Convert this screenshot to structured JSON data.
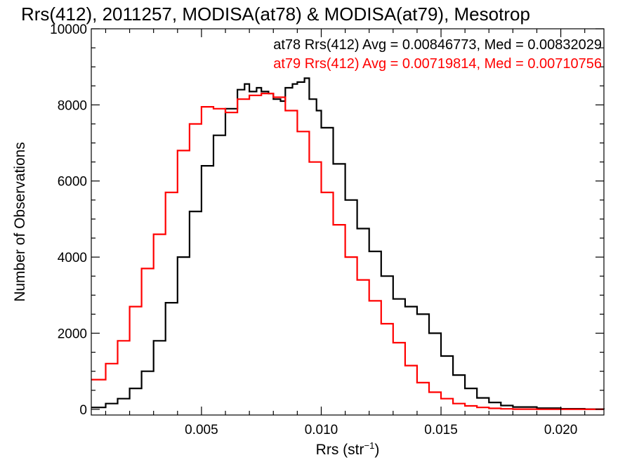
{
  "chart_data": {
    "type": "line",
    "title": "Rrs(412), 2011257, MODISA(at78) & MODISA(at79), Mesotrop",
    "xlabel": "Rrs (str",
    "xlabel_sup": "−1",
    "xlabel_close": ")",
    "ylabel": "Number of Observations",
    "xlim": [
      0.0004,
      0.0218
    ],
    "ylim": [
      -150,
      10000
    ],
    "x_ticks": [
      0.005,
      0.01,
      0.015,
      0.02
    ],
    "x_tick_labels": [
      "0.005",
      "0.010",
      "0.015",
      "0.020"
    ],
    "y_ticks": [
      0,
      2000,
      4000,
      6000,
      8000,
      10000
    ],
    "y_tick_labels": [
      "0",
      "2000",
      "4000",
      "6000",
      "8000",
      "10000"
    ],
    "grid": false,
    "legend_position": "top-right",
    "series": [
      {
        "name": "at78 Rrs(412) Avg = 0.00846773, Med = 0.00832029",
        "color": "#000000",
        "x": [
          0.0004,
          0.001,
          0.0015,
          0.002,
          0.0025,
          0.003,
          0.0035,
          0.004,
          0.0045,
          0.005,
          0.0055,
          0.006,
          0.0065,
          0.0068,
          0.007,
          0.0073,
          0.0075,
          0.0078,
          0.008,
          0.0083,
          0.0085,
          0.0088,
          0.009,
          0.0093,
          0.0095,
          0.0098,
          0.01,
          0.0105,
          0.011,
          0.0115,
          0.012,
          0.0125,
          0.013,
          0.0135,
          0.014,
          0.0145,
          0.015,
          0.0155,
          0.016,
          0.0165,
          0.017,
          0.0175,
          0.018,
          0.019,
          0.02,
          0.021,
          0.0218
        ],
        "y": [
          50,
          150,
          280,
          550,
          1000,
          1800,
          2800,
          4000,
          5200,
          6400,
          7200,
          7900,
          8400,
          8550,
          8350,
          8450,
          8350,
          8300,
          8150,
          8100,
          8450,
          8550,
          8600,
          8700,
          8150,
          7850,
          7400,
          6450,
          5500,
          4750,
          4150,
          3500,
          2900,
          2700,
          2500,
          2000,
          1400,
          900,
          550,
          300,
          180,
          100,
          60,
          30,
          15,
          5,
          0
        ]
      },
      {
        "name": "at79 Rrs(412) Avg = 0.00719814, Med = 0.00710756",
        "color": "#ff0000",
        "x": [
          0.0004,
          0.001,
          0.0015,
          0.002,
          0.0025,
          0.003,
          0.0035,
          0.004,
          0.0045,
          0.005,
          0.0055,
          0.006,
          0.0065,
          0.007,
          0.0075,
          0.008,
          0.0085,
          0.009,
          0.0095,
          0.01,
          0.0105,
          0.011,
          0.0115,
          0.012,
          0.0125,
          0.013,
          0.0135,
          0.014,
          0.0145,
          0.015,
          0.0155,
          0.016,
          0.0165,
          0.017,
          0.0175,
          0.018,
          0.019,
          0.02,
          0.021,
          0.0218
        ],
        "y": [
          780,
          1200,
          1800,
          2700,
          3700,
          4600,
          5700,
          6800,
          7500,
          7950,
          7900,
          7800,
          8150,
          8250,
          8300,
          8200,
          7850,
          7300,
          6500,
          5700,
          4850,
          4000,
          3400,
          2850,
          2250,
          1750,
          1150,
          700,
          450,
          280,
          150,
          90,
          50,
          25,
          12,
          5,
          2,
          1,
          0,
          0
        ]
      }
    ]
  }
}
